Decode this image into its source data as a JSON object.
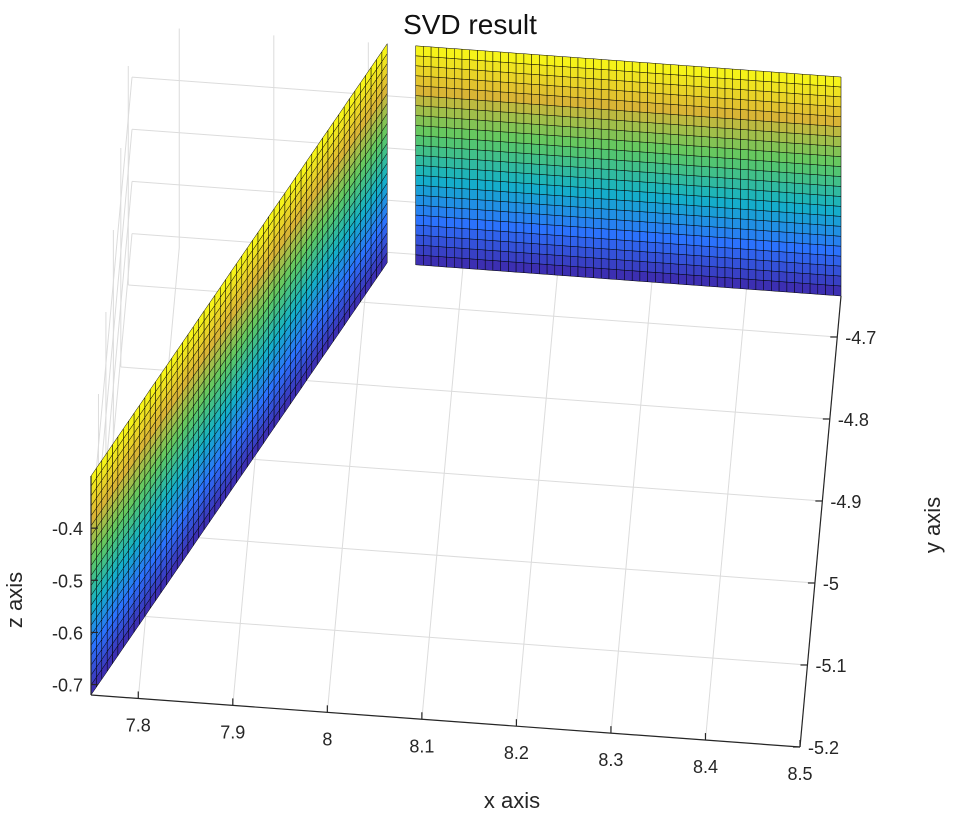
{
  "chart_data": {
    "type": "surface3d",
    "title": "SVD result",
    "xlabel": "x axis",
    "ylabel": "y axis",
    "zlabel": "z axis",
    "xlim": [
      7.75,
      8.5
    ],
    "ylim": [
      -5.2,
      -4.65
    ],
    "zlim": [
      -0.72,
      -0.3
    ],
    "x_ticks": [
      "7.8",
      "7.9",
      "8",
      "8.1",
      "8.2",
      "8.3",
      "8.4",
      "8.5"
    ],
    "y_ticks": [
      "-4.7",
      "-4.8",
      "-4.9",
      "-5",
      "-5.1",
      "-5.2"
    ],
    "z_ticks": [
      "-0.4",
      "-0.5",
      "-0.6",
      "-0.7"
    ],
    "colormap": [
      "#3e26a8",
      "#2c71fe",
      "#13b1c7",
      "#5ec962",
      "#dcb534",
      "#f9fb15"
    ],
    "surfaces": [
      {
        "x": [
          7.75,
          8.02
        ],
        "y": [
          -5.2,
          -4.65
        ],
        "z": [
          -0.72,
          -0.3
        ]
      },
      {
        "x": [
          8.05,
          8.5
        ],
        "y": [
          -4.65,
          -4.65
        ],
        "z": [
          -0.72,
          -0.3
        ]
      }
    ]
  }
}
